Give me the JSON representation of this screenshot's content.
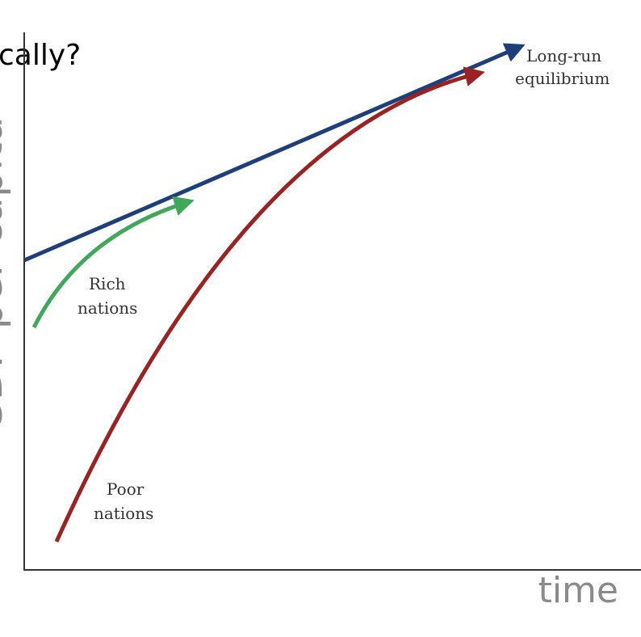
{
  "header": {
    "title": "cally?"
  },
  "axes": {
    "y_label": "GDP per capita",
    "x_label": "time"
  },
  "labels": {
    "long_run": [
      "Long-run",
      "equilibrium"
    ],
    "rich": [
      "Rich",
      "nations"
    ],
    "poor": [
      "Poor",
      "nations"
    ]
  }
}
